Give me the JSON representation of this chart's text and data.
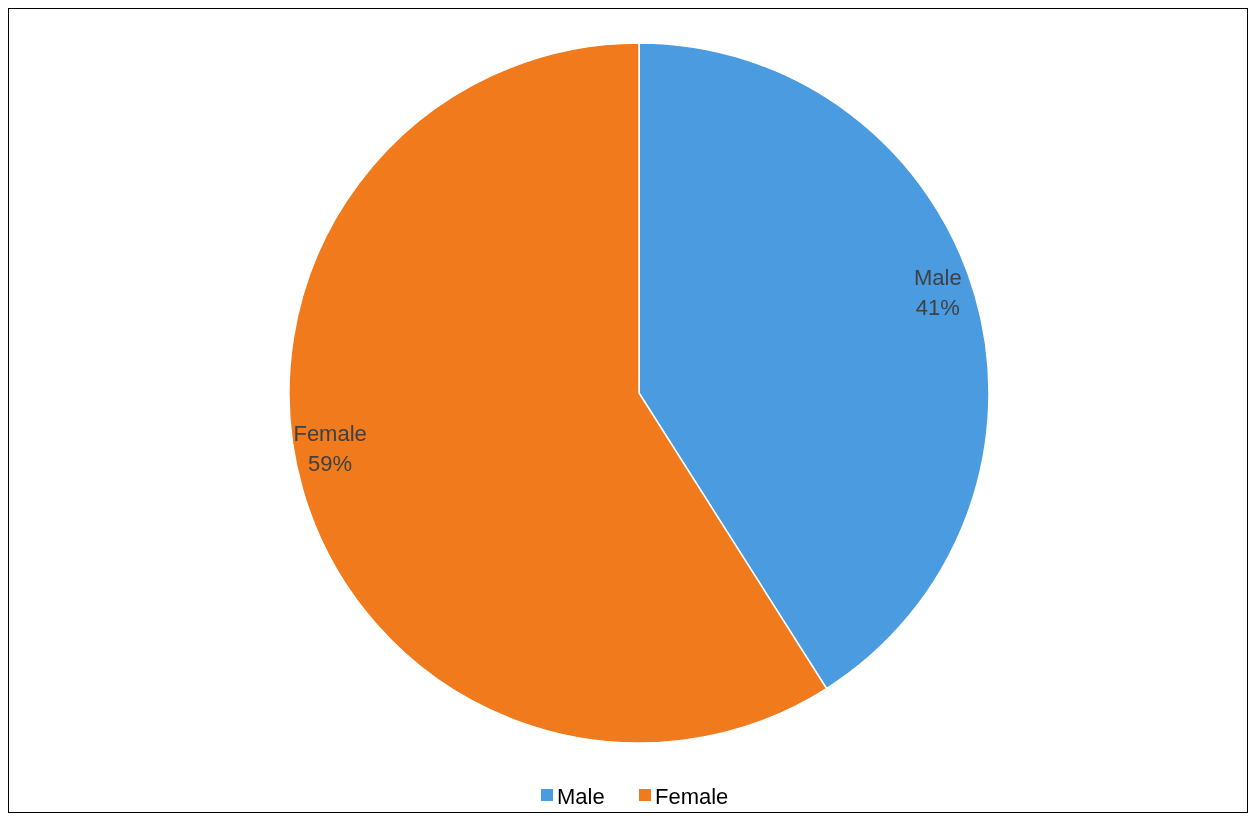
{
  "chart_data": {
    "type": "pie",
    "categories": [
      "Male",
      "Female"
    ],
    "values": [
      41,
      59
    ],
    "colors": [
      "#4a9be0",
      "#f07a1c"
    ],
    "value_labels": [
      "41%",
      "59%"
    ],
    "legend": "bottom"
  }
}
